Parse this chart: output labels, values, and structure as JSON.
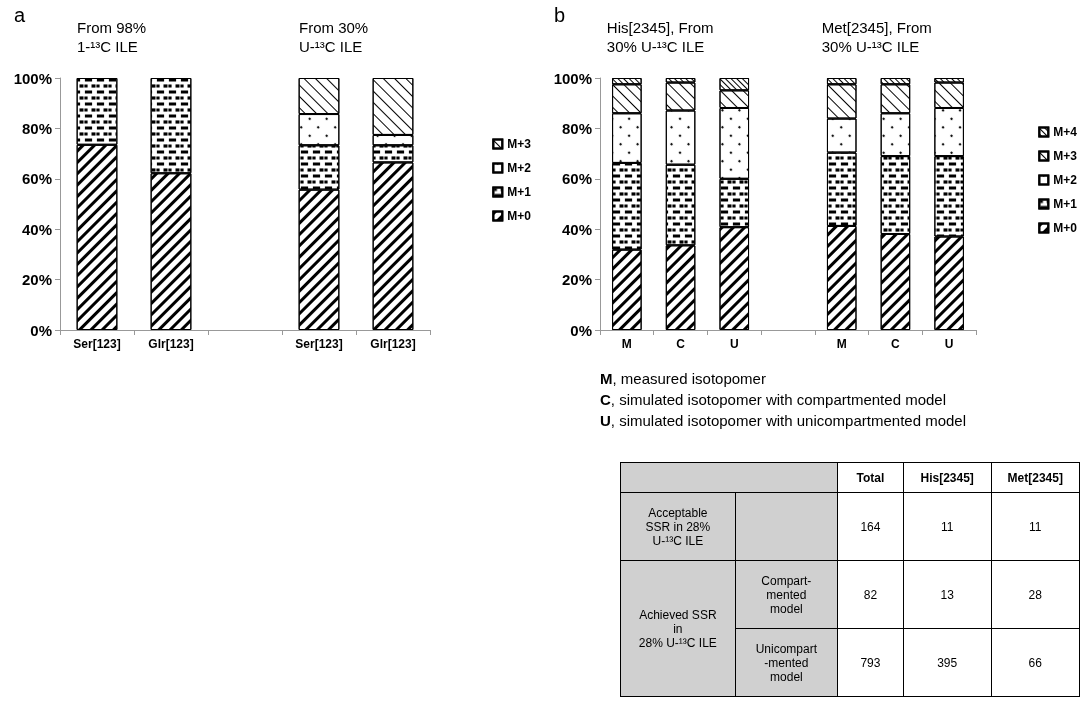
{
  "chart_data": [
    {
      "type": "bar",
      "title": "a",
      "annotations": [
        "From 98%\n1-¹³C ILE",
        "From 30%\nU-¹³C ILE"
      ],
      "categories": [
        "Ser[123]",
        "Glr[123]",
        null,
        "Ser[123]",
        "Glr[123]"
      ],
      "stacked": true,
      "legend": "right",
      "grid": false,
      "ylim": [
        0,
        100
      ],
      "yticks": [
        {
          "value": 0,
          "label": "0%"
        },
        {
          "value": 20,
          "label": "20%"
        },
        {
          "value": 40,
          "label": "40%"
        },
        {
          "value": 60,
          "label": "60%"
        },
        {
          "value": 80,
          "label": "80%"
        },
        {
          "value": 100,
          "label": "100%"
        }
      ],
      "series": [
        {
          "name": "M+0",
          "color": "#ffffff",
          "values": [
            73.5,
            62.2,
            null,
            55.7,
            66.5
          ]
        },
        {
          "name": "M+1",
          "color": "#ffffff",
          "values": [
            26.5,
            37.8,
            null,
            17.6,
            6.8
          ]
        },
        {
          "name": "M+2",
          "color": "#ffffff",
          "values": [
            null,
            null,
            null,
            12.4,
            4.1
          ]
        },
        {
          "name": "M+3",
          "color": "#ffffff",
          "values": [
            null,
            null,
            null,
            14.3,
            22.6
          ]
        }
      ]
    },
    {
      "type": "bar",
      "title": "b",
      "annotations": [
        "His[2345], From\n30% U-¹³C ILE",
        "Met[2345], From\n30% U-¹³C ILE",
        "M, measured isotopomer",
        "C, simulated isotopomer with compartmented model",
        "U, simulated isotopomer with unicompartmented model"
      ],
      "categories": [
        "M",
        "C",
        "U",
        null,
        "M",
        "C",
        "U"
      ],
      "stacked": true,
      "legend": "right",
      "grid": false,
      "ylim": [
        0,
        100
      ],
      "yticks": [
        {
          "value": 0,
          "label": "0%"
        },
        {
          "value": 20,
          "label": "20%"
        },
        {
          "value": 40,
          "label": "40%"
        },
        {
          "value": 60,
          "label": "60%"
        },
        {
          "value": 80,
          "label": "80%"
        },
        {
          "value": 100,
          "label": "100%"
        }
      ],
      "series": [
        {
          "name": "M+0",
          "color": "#ffffff",
          "values": [
            31.9,
            33.6,
            40.8,
            null,
            41.3,
            38.1,
            37.1
          ]
        },
        {
          "name": "M+1",
          "color": "#ffffff",
          "values": [
            34.4,
            32.0,
            19.2,
            null,
            29.1,
            30.9,
            31.9
          ]
        },
        {
          "name": "M+2",
          "color": "#ffffff",
          "values": [
            19.7,
            21.5,
            28.1,
            null,
            13.5,
            17.0,
            19.1
          ]
        },
        {
          "name": "M+3",
          "color": "#ffffff",
          "values": [
            11.5,
            11.1,
            7.0,
            null,
            13.6,
            11.5,
            10.1
          ]
        },
        {
          "name": "M+4",
          "color": "#ffffff",
          "values": [
            2.5,
            1.8,
            4.9,
            null,
            2.5,
            2.5,
            1.8
          ]
        }
      ]
    },
    {
      "type": "other",
      "annotations": [
        "Total",
        "His[2345]",
        "Met[2345]",
        "Acceptable\nSSR in 28%\nU-¹³C ILE",
        "164",
        "11",
        "11",
        "Achieved SSR\nin\n28% U-¹³C ILE",
        "Compart-\nmented\nmodel",
        "82",
        "13",
        "28",
        "Unicompart\n-mented\nmodel",
        "793",
        "395",
        "66"
      ]
    }
  ]
}
